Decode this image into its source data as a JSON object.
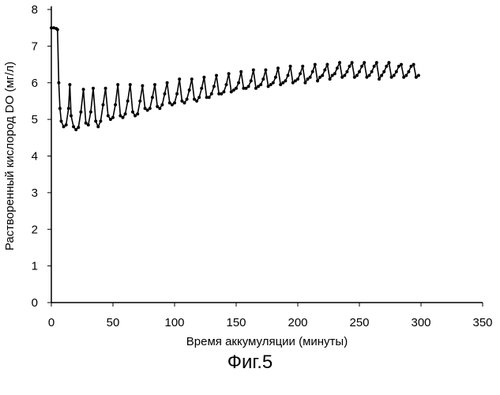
{
  "chart_data": {
    "type": "line",
    "xlabel": "Время аккумуляции (минуты)",
    "ylabel": "Растворенный кислород DO (мг/л)",
    "xlim": [
      0,
      350
    ],
    "ylim": [
      0,
      8
    ],
    "x_ticks": [
      "0",
      "50",
      "100",
      "150",
      "200",
      "250",
      "300",
      "350"
    ],
    "y_ticks": [
      "0",
      "1",
      "2",
      "3",
      "4",
      "5",
      "6",
      "7",
      "8"
    ],
    "grid": false,
    "legend": "none",
    "line_color": "#000000",
    "marker": "dot",
    "series": [
      {
        "x": [
          0,
          2,
          4,
          5,
          6,
          7,
          8,
          10,
          12,
          14,
          15,
          16,
          18,
          20,
          22,
          24,
          26,
          28,
          30,
          32,
          34,
          36,
          38,
          40,
          42,
          44,
          46,
          48,
          50,
          52,
          54,
          56,
          58,
          60,
          62,
          64,
          66,
          68,
          70,
          72,
          74,
          76,
          78,
          80,
          82,
          84,
          86,
          88,
          90,
          92,
          94,
          96,
          98,
          100,
          102,
          104,
          106,
          108,
          110,
          112,
          114,
          116,
          118,
          120,
          122,
          124,
          126,
          128,
          130,
          132,
          134,
          136,
          138,
          140,
          142,
          144,
          146,
          148,
          150,
          152,
          154,
          156,
          158,
          160,
          162,
          164,
          166,
          168,
          170,
          172,
          174,
          176,
          178,
          180,
          182,
          184,
          186,
          188,
          190,
          192,
          194,
          196,
          198,
          200,
          202,
          204,
          206,
          208,
          210,
          212,
          214,
          216,
          218,
          220,
          222,
          224,
          226,
          228,
          230,
          232,
          234,
          236,
          238,
          240,
          242,
          244,
          246,
          248,
          250,
          252,
          254,
          256,
          258,
          260,
          262,
          264,
          266,
          268,
          270,
          272,
          274,
          276,
          278,
          280,
          282,
          284,
          286,
          288,
          290,
          292,
          294,
          296,
          298
        ],
        "y": [
          7.5,
          7.5,
          7.48,
          7.45,
          6.0,
          5.3,
          4.95,
          4.8,
          4.85,
          5.3,
          5.95,
          5.1,
          4.8,
          4.72,
          4.78,
          5.2,
          5.82,
          4.9,
          4.85,
          5.2,
          5.85,
          4.95,
          4.8,
          4.95,
          5.4,
          5.85,
          5.1,
          5.0,
          5.05,
          5.4,
          5.95,
          5.1,
          5.05,
          5.15,
          5.5,
          5.95,
          5.2,
          5.1,
          5.15,
          5.5,
          5.92,
          5.3,
          5.25,
          5.3,
          5.6,
          5.95,
          5.35,
          5.3,
          5.4,
          5.7,
          6.0,
          5.45,
          5.4,
          5.45,
          5.7,
          6.1,
          5.5,
          5.45,
          5.55,
          5.8,
          6.1,
          5.55,
          5.5,
          5.6,
          5.85,
          6.15,
          5.6,
          5.6,
          5.7,
          5.9,
          6.2,
          5.7,
          5.7,
          5.75,
          5.95,
          6.25,
          5.75,
          5.8,
          5.85,
          6.0,
          6.3,
          5.85,
          5.85,
          5.9,
          6.05,
          6.35,
          5.85,
          5.9,
          5.95,
          6.1,
          6.35,
          5.9,
          5.95,
          6.0,
          6.15,
          6.4,
          5.95,
          6.0,
          6.05,
          6.2,
          6.45,
          6.0,
          6.05,
          6.1,
          6.25,
          6.45,
          6.0,
          6.1,
          6.15,
          6.3,
          6.5,
          6.05,
          6.15,
          6.2,
          6.35,
          6.5,
          6.1,
          6.2,
          6.25,
          6.4,
          6.55,
          6.15,
          6.2,
          6.3,
          6.45,
          6.55,
          6.15,
          6.2,
          6.3,
          6.45,
          6.55,
          6.15,
          6.2,
          6.3,
          6.45,
          6.55,
          6.1,
          6.2,
          6.3,
          6.45,
          6.55,
          6.15,
          6.2,
          6.3,
          6.45,
          6.5,
          6.15,
          6.2,
          6.3,
          6.45,
          6.5,
          6.15,
          6.2
        ]
      }
    ]
  },
  "caption": "Фиг.5"
}
